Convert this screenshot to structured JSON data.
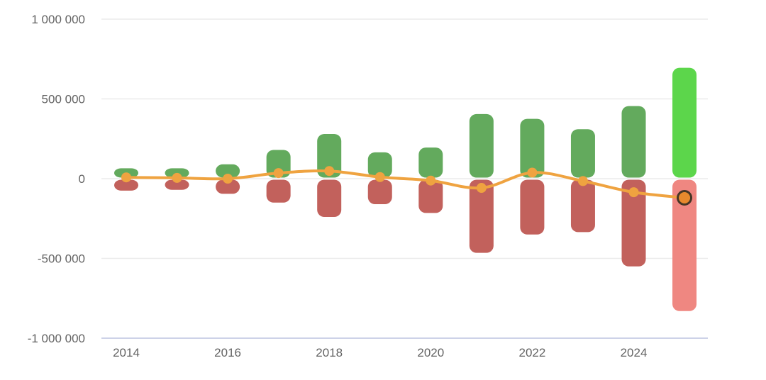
{
  "chart_data": {
    "type": "combo",
    "title": "",
    "subtitle": "",
    "legend": "none",
    "grid": "horizontal-only",
    "background_color": "#ffffff",
    "axis_text_color": "#636363",
    "gridline_color": "#ebebeb",
    "baseline_color": "#c6cce4",
    "categories": [
      2014,
      2015,
      2016,
      2017,
      2018,
      2019,
      2020,
      2021,
      2022,
      2023,
      2024,
      2025
    ],
    "series": [
      {
        "name": "positive-bars",
        "type": "bar",
        "color": "#63AA5D",
        "highlight_color": "#5CD64B",
        "values": [
          65000,
          65000,
          90000,
          180000,
          280000,
          165000,
          195000,
          405000,
          375000,
          310000,
          455000,
          695000
        ]
      },
      {
        "name": "negative-bars",
        "type": "bar",
        "color": "#C2615C",
        "highlight_color": "#EF8781",
        "values": [
          -75000,
          -70000,
          -95000,
          -150000,
          -240000,
          -160000,
          -215000,
          -465000,
          -350000,
          -335000,
          -550000,
          -830000
        ]
      },
      {
        "name": "net-line",
        "type": "line",
        "color": "#EFA340",
        "point_color": "#EFA340",
        "values": [
          8000,
          5000,
          0,
          35000,
          48000,
          10000,
          -12000,
          -58000,
          38000,
          -15000,
          -85000,
          -120000
        ]
      }
    ],
    "highlighted_category": 2025,
    "highlight_marker": {
      "fill": "#E8892D",
      "stroke": "#463626"
    },
    "ylim": [
      -1000000,
      1000000
    ],
    "yticks": [
      {
        "value": 1000000,
        "label": "1 000 000"
      },
      {
        "value": 500000,
        "label": "500 000"
      },
      {
        "value": 0,
        "label": "0"
      },
      {
        "value": -500000,
        "label": "-500 000"
      },
      {
        "value": -1000000,
        "label": "-1 000 000"
      }
    ],
    "xticks": [
      {
        "value": 2014,
        "label": "2014"
      },
      {
        "value": 2016,
        "label": "2016"
      },
      {
        "value": 2018,
        "label": "2018"
      },
      {
        "value": 2020,
        "label": "2020"
      },
      {
        "value": 2022,
        "label": "2022"
      },
      {
        "value": 2024,
        "label": "2024"
      }
    ]
  }
}
